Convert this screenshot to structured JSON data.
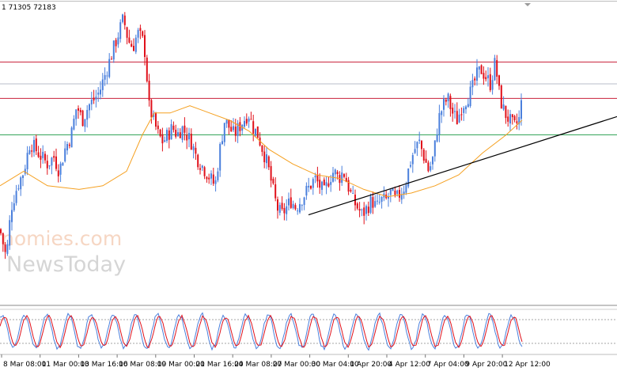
{
  "header": {
    "text": "1 71305 72183"
  },
  "watermark": {
    "line1": "nomies.com",
    "line2": "NewsToday"
  },
  "colors": {
    "bull": "#4a7fdc",
    "bear": "#e0101a",
    "ma": "#f5a020",
    "resistance": "#c8203a",
    "support": "#2aa050",
    "aux_line": "#b8bcc8",
    "trendline": "#000000",
    "stoch_main": "#4a7fdc",
    "stoch_signal": "#e0101a",
    "stoch_level": "#888888",
    "separator": "#8a8a8a"
  },
  "chart_data": [
    {
      "type": "candlestick",
      "ylim": [
        0.7,
        1.1
      ],
      "x_tick_labels": [
        "8 Mar 08:00",
        "11 Mar 00:00",
        "13 Mar 16:00",
        "16 Mar 08:00",
        "19 Mar 00:00",
        "21 Mar 16:00",
        "24 Mar 08:00",
        "27 Mar 00:00",
        "30 Mar 04:00",
        "1 Apr 20:00",
        "4 Apr 12:00",
        "7 Apr 04:00",
        "9 Apr 20:00",
        "12 Apr 12:00"
      ],
      "close_path": [
        [
          0,
          0.8
        ],
        [
          8,
          0.76
        ],
        [
          14,
          0.83
        ],
        [
          22,
          0.86
        ],
        [
          30,
          0.88
        ],
        [
          38,
          0.92
        ],
        [
          45,
          0.91
        ],
        [
          52,
          0.9
        ],
        [
          60,
          0.89
        ],
        [
          68,
          0.9
        ],
        [
          75,
          0.88
        ],
        [
          82,
          0.91
        ],
        [
          90,
          0.93
        ],
        [
          97,
          0.97
        ],
        [
          104,
          0.95
        ],
        [
          112,
          0.97
        ],
        [
          120,
          0.98
        ],
        [
          126,
          0.99
        ],
        [
          132,
          1.01
        ],
        [
          138,
          1.03
        ],
        [
          144,
          1.05
        ],
        [
          150,
          1.07
        ],
        [
          156,
          1.09
        ],
        [
          162,
          1.06
        ],
        [
          168,
          1.05
        ],
        [
          174,
          1.07
        ],
        [
          180,
          1.06
        ],
        [
          184,
          1.04
        ],
        [
          188,
          0.97
        ],
        [
          194,
          0.95
        ],
        [
          200,
          0.93
        ],
        [
          206,
          0.92
        ],
        [
          212,
          0.93
        ],
        [
          218,
          0.94
        ],
        [
          224,
          0.93
        ],
        [
          230,
          0.94
        ],
        [
          236,
          0.93
        ],
        [
          242,
          0.92
        ],
        [
          248,
          0.9
        ],
        [
          254,
          0.89
        ],
        [
          260,
          0.88
        ],
        [
          266,
          0.87
        ],
        [
          272,
          0.86
        ],
        [
          278,
          0.91
        ],
        [
          284,
          0.95
        ],
        [
          290,
          0.94
        ],
        [
          296,
          0.93
        ],
        [
          302,
          0.94
        ],
        [
          308,
          0.95
        ],
        [
          314,
          0.96
        ],
        [
          320,
          0.94
        ],
        [
          326,
          0.93
        ],
        [
          332,
          0.91
        ],
        [
          338,
          0.89
        ],
        [
          344,
          0.86
        ],
        [
          350,
          0.83
        ],
        [
          356,
          0.82
        ],
        [
          362,
          0.83
        ],
        [
          368,
          0.84
        ],
        [
          374,
          0.83
        ],
        [
          380,
          0.84
        ],
        [
          386,
          0.85
        ],
        [
          392,
          0.86
        ],
        [
          398,
          0.87
        ],
        [
          404,
          0.86
        ],
        [
          410,
          0.85
        ],
        [
          416,
          0.87
        ],
        [
          422,
          0.88
        ],
        [
          428,
          0.87
        ],
        [
          434,
          0.88
        ],
        [
          440,
          0.86
        ],
        [
          446,
          0.84
        ],
        [
          452,
          0.83
        ],
        [
          458,
          0.82
        ],
        [
          464,
          0.83
        ],
        [
          470,
          0.84
        ],
        [
          476,
          0.83
        ],
        [
          482,
          0.84
        ],
        [
          488,
          0.84
        ],
        [
          494,
          0.85
        ],
        [
          500,
          0.84
        ],
        [
          506,
          0.85
        ],
        [
          512,
          0.86
        ],
        [
          518,
          0.89
        ],
        [
          524,
          0.91
        ],
        [
          530,
          0.92
        ],
        [
          536,
          0.9
        ],
        [
          542,
          0.88
        ],
        [
          548,
          0.9
        ],
        [
          554,
          0.95
        ],
        [
          560,
          0.97
        ],
        [
          566,
          0.98
        ],
        [
          572,
          0.96
        ],
        [
          578,
          0.95
        ],
        [
          584,
          0.97
        ],
        [
          590,
          0.98
        ],
        [
          596,
          0.99
        ],
        [
          602,
          1.01
        ],
        [
          608,
          1.02
        ],
        [
          614,
          1.01
        ],
        [
          620,
          1.0
        ],
        [
          626,
          1.03
        ],
        [
          632,
          0.98
        ],
        [
          638,
          0.96
        ],
        [
          644,
          0.95
        ],
        [
          650,
          0.94
        ],
        [
          656,
          0.95
        ],
        [
          660,
          0.98
        ]
      ],
      "moving_average": [
        [
          0,
          0.86
        ],
        [
          30,
          0.88
        ],
        [
          60,
          0.86
        ],
        [
          100,
          0.855
        ],
        [
          130,
          0.86
        ],
        [
          160,
          0.88
        ],
        [
          180,
          0.93
        ],
        [
          195,
          0.96
        ],
        [
          215,
          0.96
        ],
        [
          240,
          0.97
        ],
        [
          265,
          0.96
        ],
        [
          290,
          0.95
        ],
        [
          315,
          0.935
        ],
        [
          340,
          0.91
        ],
        [
          370,
          0.89
        ],
        [
          400,
          0.875
        ],
        [
          430,
          0.87
        ],
        [
          460,
          0.855
        ],
        [
          490,
          0.845
        ],
        [
          520,
          0.85
        ],
        [
          550,
          0.86
        ],
        [
          580,
          0.875
        ],
        [
          610,
          0.905
        ],
        [
          640,
          0.93
        ],
        [
          660,
          0.95
        ]
      ],
      "horizontal_lines": [
        {
          "kind": "resistance",
          "y": 1.03
        },
        {
          "kind": "aux",
          "y": 1.0
        },
        {
          "kind": "resistance",
          "y": 0.98
        },
        {
          "kind": "support",
          "y": 0.93
        }
      ],
      "trendline": [
        [
          390,
          0.82
        ],
        [
          780,
          0.955
        ]
      ]
    },
    {
      "type": "line",
      "ylim": [
        0,
        100
      ],
      "levels": [
        80,
        20
      ],
      "period_px": 28,
      "phase_px": 4,
      "x_end": 660
    }
  ]
}
